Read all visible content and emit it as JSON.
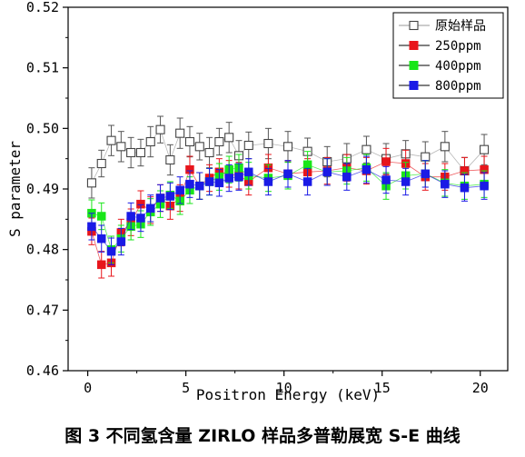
{
  "chart_data": {
    "type": "scatter",
    "xlabel": "Positron Energy (keV)",
    "ylabel": "S parameter",
    "xlim": [
      -1,
      21.4
    ],
    "ylim": [
      0.46,
      0.52
    ],
    "xticks": [
      0,
      5,
      10,
      15,
      20
    ],
    "yticks": [
      0.46,
      0.47,
      0.48,
      0.49,
      0.5,
      0.51,
      0.52
    ],
    "ytick_labels": [
      "0.46",
      "0.47",
      "0.48",
      "0.49",
      "0.50",
      "0.51",
      "0.52"
    ],
    "grid": false,
    "legend_position": "top-right",
    "series": [
      {
        "name": "原始样品",
        "color": "#ffffff",
        "marker": "square-open",
        "line_color": "#9a9a9a",
        "errorbar_color": "#555555",
        "x": [
          0.2,
          0.7,
          1.2,
          1.7,
          2.2,
          2.7,
          3.2,
          3.7,
          4.2,
          4.7,
          5.2,
          5.7,
          6.2,
          6.7,
          7.2,
          7.7,
          8.2,
          9.2,
          10.2,
          11.2,
          12.2,
          13.2,
          14.2,
          15.2,
          16.2,
          17.2,
          18.2,
          19.2,
          20.2
        ],
        "y": [
          0.491,
          0.4942,
          0.498,
          0.497,
          0.496,
          0.496,
          0.4978,
          0.4998,
          0.4948,
          0.4992,
          0.4978,
          0.497,
          0.496,
          0.4978,
          0.4985,
          0.4955,
          0.4972,
          0.4975,
          0.497,
          0.4962,
          0.4945,
          0.495,
          0.4965,
          0.495,
          0.4958,
          0.4953,
          0.497,
          0.493,
          0.4965
        ],
        "err": [
          0.0025,
          0.0022,
          0.0025,
          0.0025,
          0.0025,
          0.0022,
          0.0025,
          0.0022,
          0.0025,
          0.0025,
          0.0025,
          0.0022,
          0.0025,
          0.0022,
          0.0025,
          0.0025,
          0.0022,
          0.0025,
          0.0025,
          0.0022,
          0.0025,
          0.0025,
          0.0022,
          0.0025,
          0.0022,
          0.0025,
          0.0025,
          0.0022,
          0.0025
        ]
      },
      {
        "name": "250ppm",
        "color": "#e8151b",
        "marker": "square",
        "errorbar_color": "#e8151b",
        "x": [
          0.2,
          0.7,
          1.2,
          1.7,
          2.2,
          2.7,
          3.2,
          3.7,
          4.2,
          4.7,
          5.2,
          5.7,
          6.2,
          6.7,
          7.2,
          7.7,
          8.2,
          9.2,
          10.2,
          11.2,
          12.2,
          13.2,
          14.2,
          15.2,
          16.2,
          17.2,
          18.2,
          19.2,
          20.2
        ],
        "y": [
          0.483,
          0.4775,
          0.4778,
          0.4828,
          0.4845,
          0.4875,
          0.4865,
          0.4885,
          0.4872,
          0.4885,
          0.4932,
          0.4905,
          0.4918,
          0.4928,
          0.4925,
          0.4922,
          0.4912,
          0.4935,
          0.4925,
          0.4928,
          0.493,
          0.4935,
          0.493,
          0.4945,
          0.4942,
          0.492,
          0.492,
          0.493,
          0.4932
        ],
        "err": [
          0.0022,
          0.0022,
          0.0022,
          0.0022,
          0.0022,
          0.0022,
          0.0022,
          0.0022,
          0.0022,
          0.0022,
          0.0022,
          0.0022,
          0.0022,
          0.0022,
          0.0022,
          0.0022,
          0.0022,
          0.0022,
          0.0022,
          0.0022,
          0.0022,
          0.0022,
          0.0022,
          0.0022,
          0.0022,
          0.0022,
          0.0022,
          0.0022,
          0.0022
        ]
      },
      {
        "name": "400ppm",
        "color": "#19e619",
        "marker": "square",
        "errorbar_color": "#19e619",
        "x": [
          0.2,
          0.7,
          1.2,
          1.7,
          2.2,
          2.7,
          3.2,
          3.7,
          4.2,
          4.7,
          5.2,
          5.7,
          6.2,
          6.7,
          7.2,
          7.7,
          8.2,
          9.2,
          10.2,
          11.2,
          12.2,
          13.2,
          14.2,
          15.2,
          16.2,
          17.2,
          18.2,
          19.2,
          20.2
        ],
        "y": [
          0.486,
          0.4855,
          0.48,
          0.4818,
          0.4838,
          0.4842,
          0.4862,
          0.4875,
          0.489,
          0.488,
          0.4898,
          0.4905,
          0.4912,
          0.492,
          0.4932,
          0.4935,
          0.4922,
          0.4918,
          0.4922,
          0.494,
          0.4928,
          0.493,
          0.4935,
          0.4905,
          0.4922,
          0.4925,
          0.491,
          0.4905,
          0.4908
        ],
        "err": [
          0.0022,
          0.0022,
          0.0022,
          0.0022,
          0.0022,
          0.0022,
          0.0022,
          0.0022,
          0.0022,
          0.0022,
          0.0022,
          0.0022,
          0.0022,
          0.0022,
          0.0022,
          0.0022,
          0.0022,
          0.0022,
          0.0022,
          0.0022,
          0.0022,
          0.0022,
          0.0022,
          0.0022,
          0.0022,
          0.0022,
          0.0022,
          0.0022,
          0.0022
        ]
      },
      {
        "name": "800ppm",
        "color": "#1a1ae6",
        "marker": "square",
        "errorbar_color": "#1a1ae6",
        "x": [
          0.2,
          0.7,
          1.2,
          1.7,
          2.2,
          2.7,
          3.2,
          3.7,
          4.2,
          4.7,
          5.2,
          5.7,
          6.2,
          6.7,
          7.2,
          7.7,
          8.2,
          9.2,
          10.2,
          11.2,
          12.2,
          13.2,
          14.2,
          15.2,
          16.2,
          17.2,
          18.2,
          19.2,
          20.2
        ],
        "y": [
          0.4838,
          0.4818,
          0.4797,
          0.4813,
          0.4855,
          0.4852,
          0.4868,
          0.4885,
          0.4888,
          0.4898,
          0.4908,
          0.4905,
          0.4912,
          0.491,
          0.4918,
          0.492,
          0.4928,
          0.4912,
          0.4925,
          0.4912,
          0.4928,
          0.492,
          0.4932,
          0.4915,
          0.4912,
          0.4925,
          0.4908,
          0.4902,
          0.4905
        ],
        "err": [
          0.0022,
          0.0022,
          0.0022,
          0.0022,
          0.0022,
          0.0022,
          0.0022,
          0.0022,
          0.0022,
          0.0022,
          0.0022,
          0.0022,
          0.0022,
          0.0022,
          0.0022,
          0.0022,
          0.0022,
          0.0022,
          0.0022,
          0.0022,
          0.0022,
          0.0022,
          0.0022,
          0.0022,
          0.0022,
          0.0022,
          0.0022,
          0.0022,
          0.0022
        ]
      }
    ]
  },
  "caption": "图 3  不同氢含量 ZIRLO 样品多普勒展宽 S-E 曲线"
}
